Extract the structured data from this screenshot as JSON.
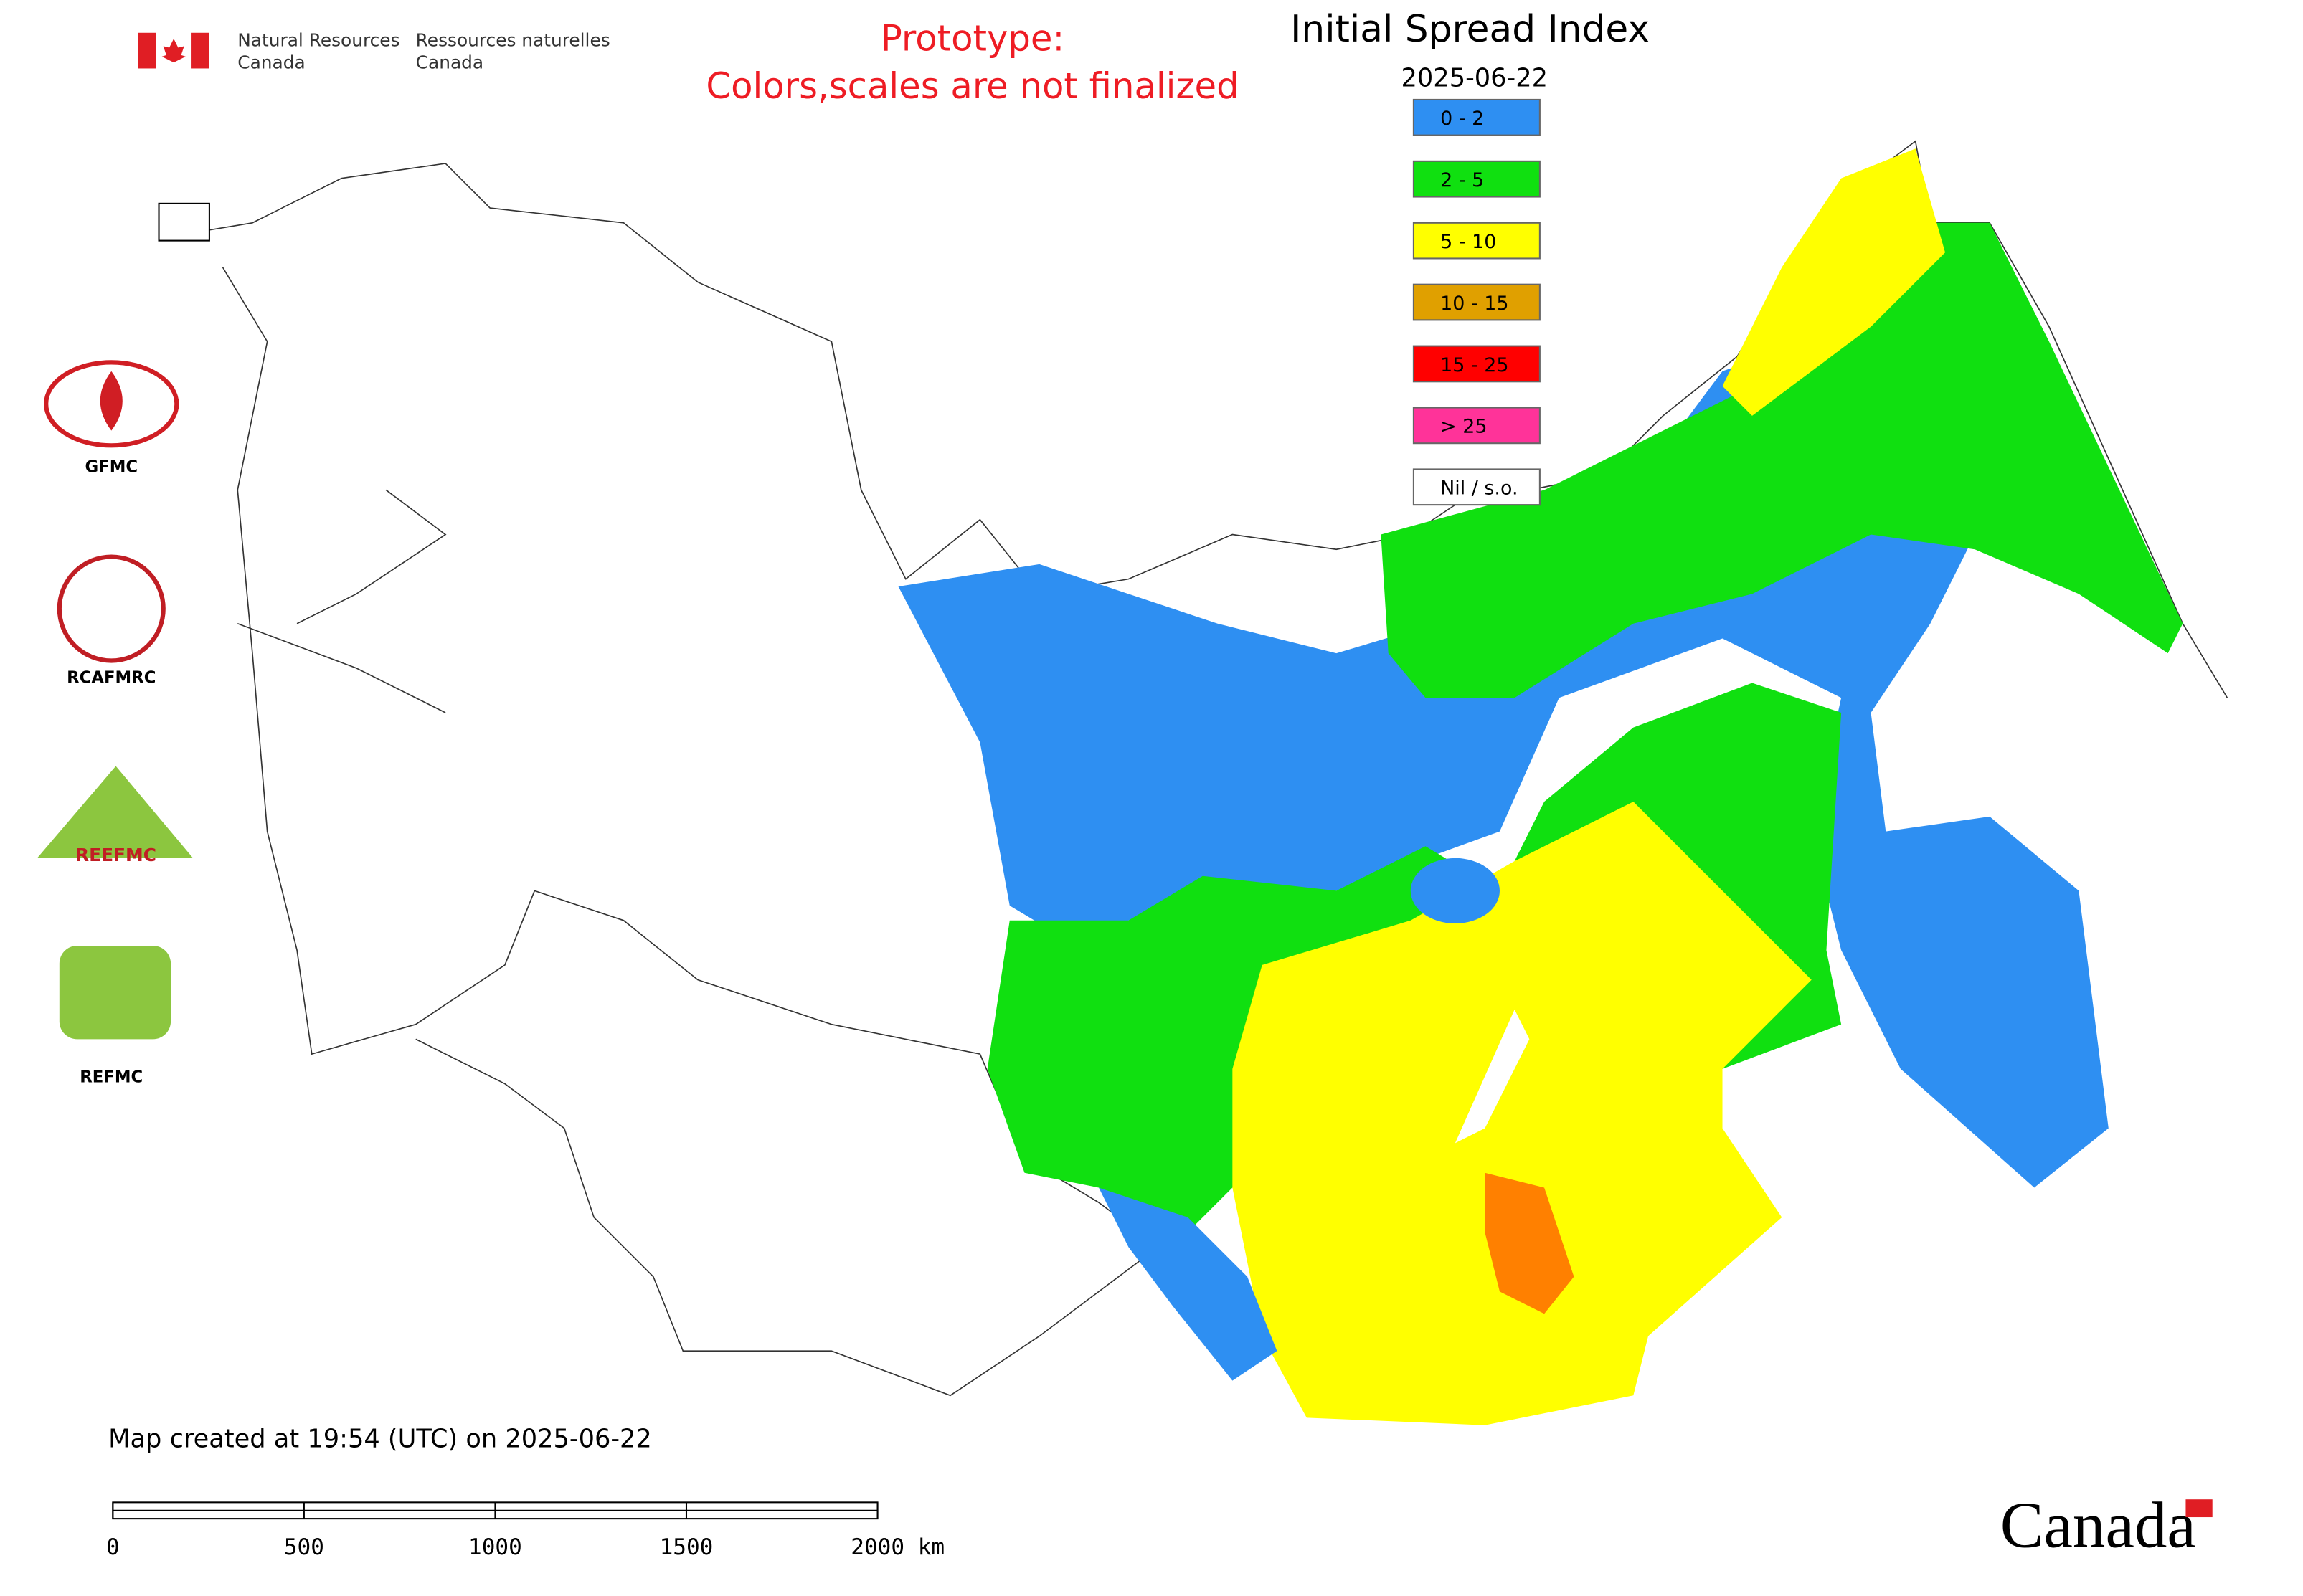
{
  "header": {
    "department_en": "Natural Resources\nCanada",
    "department_fr": "Ressources naturelles\nCanada",
    "notice_line1": "Prototype:",
    "notice_line2": "Colors,scales are not finalized"
  },
  "map": {
    "title": "Initial Spread Index",
    "date": "2025-06-22",
    "legend": [
      {
        "label": "0 - 2",
        "color": "#2e8ff2"
      },
      {
        "label": "2 - 5",
        "color": "#10e010"
      },
      {
        "label": "5 - 10",
        "color": "#ffff00"
      },
      {
        "label": "10 - 15",
        "color": "#e0a000"
      },
      {
        "label": "15 - 25",
        "color": "#ff0000"
      },
      {
        "label": "> 25",
        "color": "#ff3399"
      },
      {
        "label": "Nil / s.o.",
        "color": "#ffffff"
      }
    ],
    "created": "Map created at 19:54 (UTC) on 2025-06-22",
    "scale_labels": [
      "0",
      "500",
      "1000",
      "1500",
      "2000 km"
    ]
  },
  "logos": {
    "gfmc": "GFMC",
    "rcafmrc": "RCAFMRC",
    "reefmc": "REEFMC",
    "refmc": "REFMC"
  },
  "footer": {
    "wordmark": "Canada"
  }
}
